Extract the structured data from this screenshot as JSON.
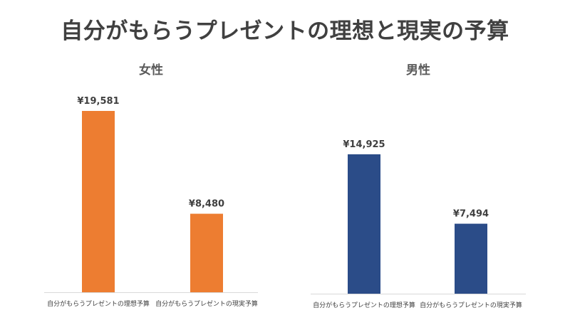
{
  "title": "自分がもらうプレゼントの理想と現実の予算",
  "chart_data": [
    {
      "type": "bar",
      "title": "女性",
      "categories": [
        "自分がもらうプレゼントの理想予算",
        "自分がもらうプレゼントの現実予算"
      ],
      "values": [
        19581,
        8480
      ],
      "data_labels": [
        "¥19,581",
        "¥8,480"
      ],
      "color": "#ED7D31"
    },
    {
      "type": "bar",
      "title": "男性",
      "categories": [
        "自分がもらうプレゼントの理想予算",
        "自分がもらうプレゼントの現実予算"
      ],
      "values": [
        14925,
        7494
      ],
      "data_labels": [
        "¥14,925",
        "¥7,494"
      ],
      "color": "#2B4C88"
    }
  ]
}
